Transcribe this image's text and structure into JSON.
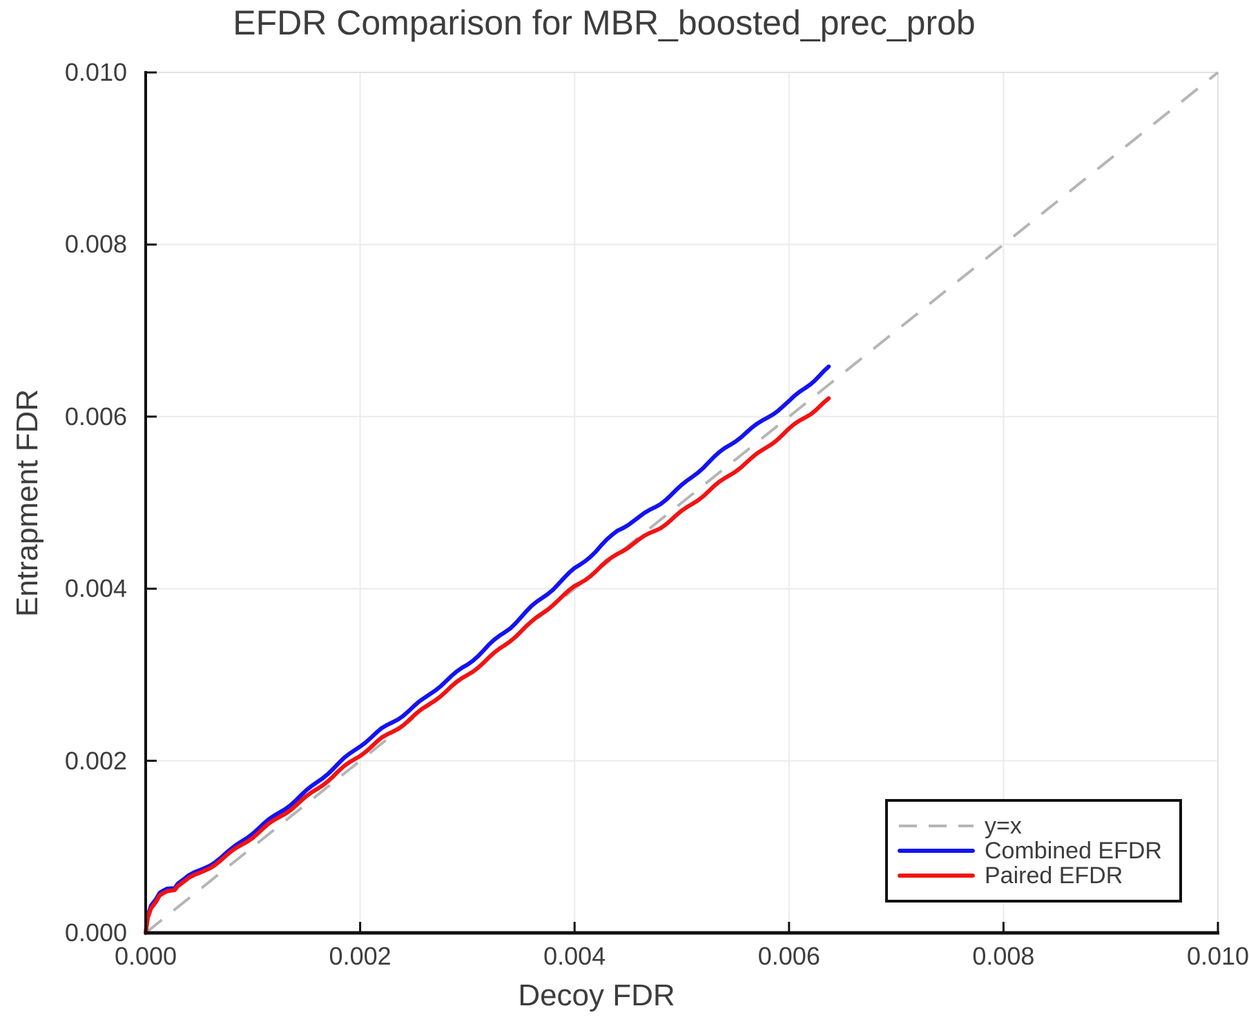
{
  "title": "EFDR Comparison for MBR_boosted_prec_prob",
  "chart_data": {
    "type": "line",
    "title": "EFDR Comparison for MBR_boosted_prec_prob",
    "xlabel": "Decoy FDR",
    "ylabel": "Entrapment FDR",
    "xlim": [
      0.0,
      0.01
    ],
    "ylim": [
      0.0,
      0.01
    ],
    "xticks": [
      "0.000",
      "0.002",
      "0.004",
      "0.006",
      "0.008",
      "0.010"
    ],
    "yticks": [
      "0.000",
      "0.002",
      "0.004",
      "0.006",
      "0.008",
      "0.010"
    ],
    "xtick_values": [
      0.0,
      0.002,
      0.004,
      0.006,
      0.008,
      0.01
    ],
    "ytick_values": [
      0.0,
      0.002,
      0.004,
      0.006,
      0.008,
      0.01
    ],
    "grid": true,
    "legend_position": "lower right",
    "reference_line": {
      "label": "y=x",
      "style": "dashed",
      "color": "#b5b5b5",
      "from": [
        0.0,
        0.0
      ],
      "to": [
        0.01,
        0.01
      ]
    },
    "series": [
      {
        "name": "Combined EFDR",
        "color": "#1313f2",
        "points": [
          [
            0.0,
            0.0
          ],
          [
            2e-05,
            0.0002
          ],
          [
            5e-05,
            0.00032
          ],
          [
            0.0001,
            0.0004
          ],
          [
            0.00013,
            0.00046
          ],
          [
            0.0002,
            0.0005
          ],
          [
            0.00027,
            0.00052
          ],
          [
            0.0003,
            0.00058
          ],
          [
            0.0004,
            0.00066
          ],
          [
            0.0005,
            0.00072
          ],
          [
            0.0006,
            0.0008
          ],
          [
            0.0008,
            0.00097
          ],
          [
            0.001,
            0.00116
          ],
          [
            0.0012,
            0.00135
          ],
          [
            0.0014,
            0.00155
          ],
          [
            0.0016,
            0.00176
          ],
          [
            0.0018,
            0.00196
          ],
          [
            0.002,
            0.00217
          ],
          [
            0.0022,
            0.00237
          ],
          [
            0.0024,
            0.00254
          ],
          [
            0.0026,
            0.00272
          ],
          [
            0.0028,
            0.00292
          ],
          [
            0.003,
            0.00312
          ],
          [
            0.0032,
            0.00335
          ],
          [
            0.0034,
            0.00355
          ],
          [
            0.0036,
            0.00378
          ],
          [
            0.0038,
            0.004
          ],
          [
            0.004,
            0.00424
          ],
          [
            0.0042,
            0.00444
          ],
          [
            0.0044,
            0.00467
          ],
          [
            0.0046,
            0.00482
          ],
          [
            0.0048,
            0.005
          ],
          [
            0.005,
            0.0052
          ],
          [
            0.0052,
            0.00541
          ],
          [
            0.0054,
            0.00562
          ],
          [
            0.0056,
            0.00582
          ],
          [
            0.0058,
            0.006
          ],
          [
            0.006,
            0.00617
          ],
          [
            0.0062,
            0.00638
          ],
          [
            0.00637,
            0.00657
          ]
        ]
      },
      {
        "name": "Paired EFDR",
        "color": "#f21313",
        "points": [
          [
            0.0,
            0.0
          ],
          [
            2e-05,
            0.00018
          ],
          [
            5e-05,
            0.00029
          ],
          [
            0.0001,
            0.00037
          ],
          [
            0.00013,
            0.00043
          ],
          [
            0.0002,
            0.00047
          ],
          [
            0.00027,
            0.0005
          ],
          [
            0.0003,
            0.00055
          ],
          [
            0.0004,
            0.00063
          ],
          [
            0.0005,
            0.00069
          ],
          [
            0.0006,
            0.00077
          ],
          [
            0.0008,
            0.00094
          ],
          [
            0.001,
            0.00111
          ],
          [
            0.0012,
            0.0013
          ],
          [
            0.0014,
            0.00149
          ],
          [
            0.0016,
            0.00168
          ],
          [
            0.0018,
            0.00187
          ],
          [
            0.002,
            0.00206
          ],
          [
            0.0022,
            0.00226
          ],
          [
            0.0024,
            0.00243
          ],
          [
            0.0026,
            0.00261
          ],
          [
            0.0028,
            0.0028
          ],
          [
            0.003,
            0.003
          ],
          [
            0.0032,
            0.0032
          ],
          [
            0.0034,
            0.0034
          ],
          [
            0.0036,
            0.0036
          ],
          [
            0.0038,
            0.00382
          ],
          [
            0.004,
            0.00403
          ],
          [
            0.0042,
            0.00421
          ],
          [
            0.0044,
            0.0044
          ],
          [
            0.0046,
            0.00456
          ],
          [
            0.0048,
            0.00472
          ],
          [
            0.005,
            0.0049
          ],
          [
            0.0052,
            0.00508
          ],
          [
            0.0054,
            0.00527
          ],
          [
            0.0056,
            0.00547
          ],
          [
            0.0058,
            0.00566
          ],
          [
            0.006,
            0.00585
          ],
          [
            0.0062,
            0.00603
          ],
          [
            0.00637,
            0.0062
          ]
        ]
      }
    ]
  },
  "legend": {
    "items": [
      {
        "label": "y=x"
      },
      {
        "label": "Combined EFDR"
      },
      {
        "label": "Paired EFDR"
      }
    ]
  },
  "colors": {
    "text": "#3d3d3d",
    "spine": "#111111",
    "grid": "#ebebeb",
    "frame_light": "#e3e3e3",
    "reference": "#b5b5b5",
    "combined": "#1313f2",
    "paired": "#f21313",
    "background": "#ffffff"
  }
}
